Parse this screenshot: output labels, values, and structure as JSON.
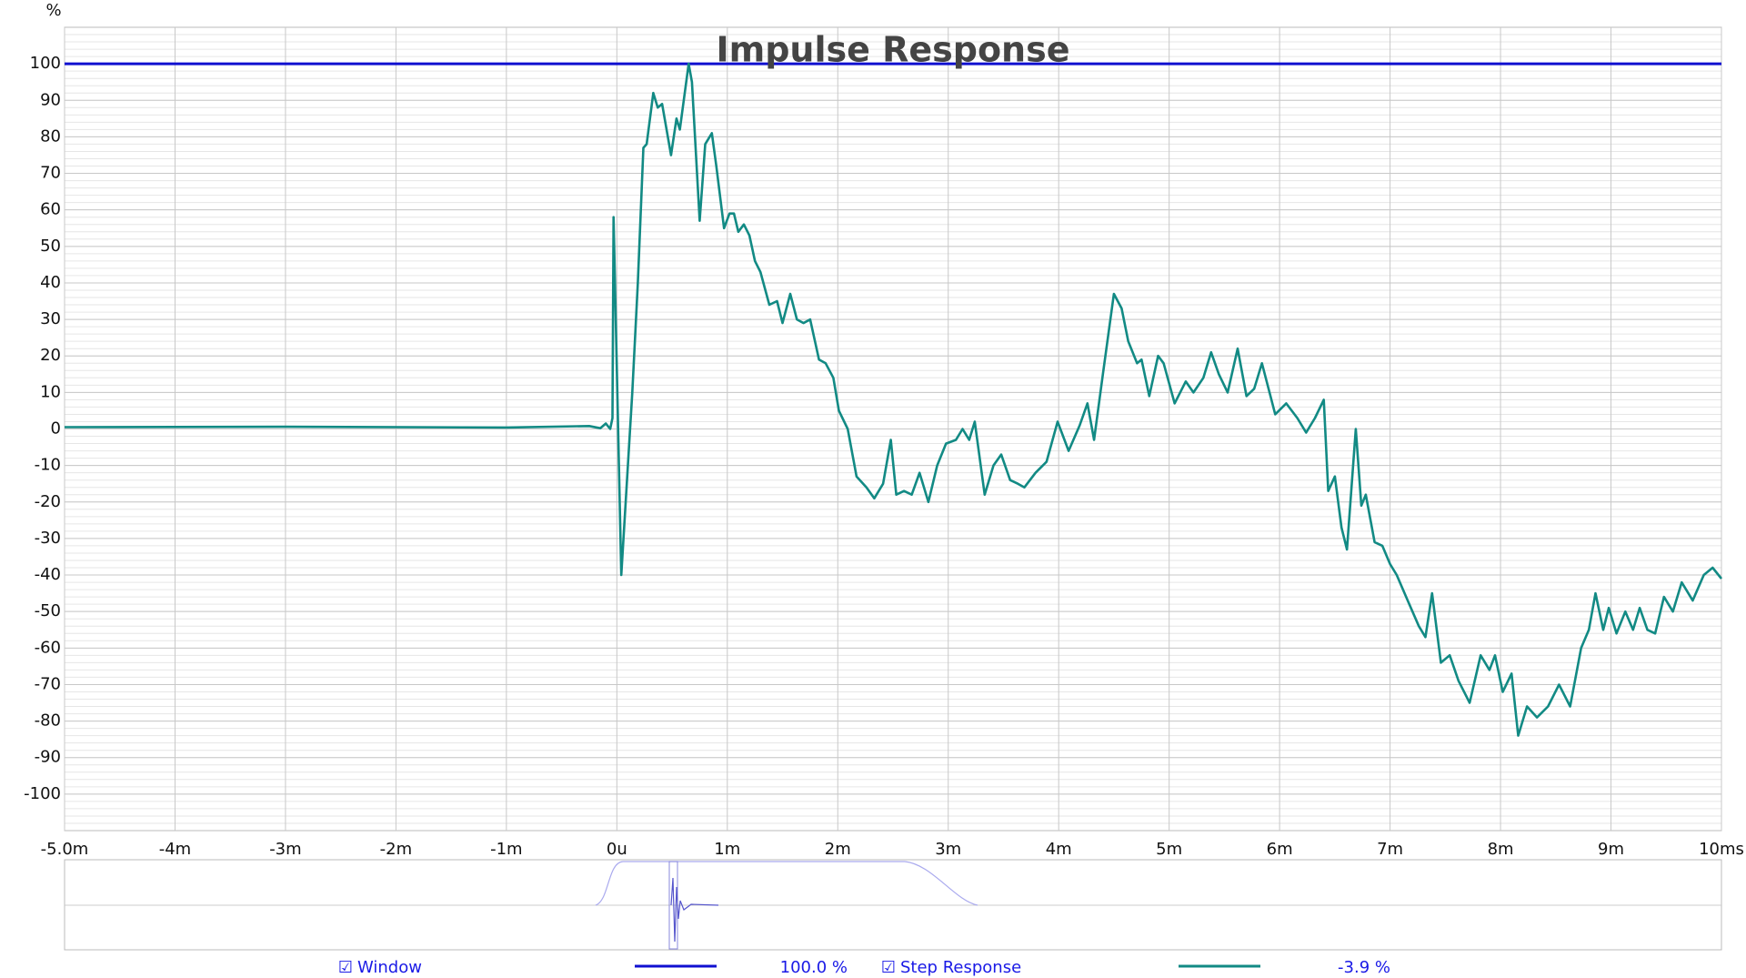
{
  "chart_data": {
    "type": "line",
    "title": "Impulse Response",
    "y_label": "%",
    "xlim": [
      -5,
      10
    ],
    "ylim": [
      -110,
      110
    ],
    "grid": true,
    "xticks": [
      {
        "value": -5,
        "label": "-5.0m"
      },
      {
        "value": -4,
        "label": "-4m"
      },
      {
        "value": -3,
        "label": "-3m"
      },
      {
        "value": -2,
        "label": "-2m"
      },
      {
        "value": -1,
        "label": "-1m"
      },
      {
        "value": 0,
        "label": "0u"
      },
      {
        "value": 1,
        "label": "1m"
      },
      {
        "value": 2,
        "label": "2m"
      },
      {
        "value": 3,
        "label": "3m"
      },
      {
        "value": 4,
        "label": "4m"
      },
      {
        "value": 5,
        "label": "5m"
      },
      {
        "value": 6,
        "label": "6m"
      },
      {
        "value": 7,
        "label": "7m"
      },
      {
        "value": 8,
        "label": "8m"
      },
      {
        "value": 9,
        "label": "9m"
      },
      {
        "value": 10,
        "label": "10ms"
      }
    ],
    "yticks": [
      100,
      90,
      80,
      70,
      60,
      50,
      40,
      30,
      20,
      10,
      0,
      -10,
      -20,
      -30,
      -40,
      -50,
      -60,
      -70,
      -80,
      -90,
      -100
    ],
    "series": [
      {
        "name": "Window",
        "color": "#1010d0",
        "legend_value": "100.0 %",
        "x": [
          -5,
          10
        ],
        "values": [
          100,
          100
        ]
      },
      {
        "name": "Step Response",
        "color": "#128a84",
        "legend_value": "-3.9 %",
        "x": [
          -5,
          -3,
          -1,
          -0.25,
          -0.15,
          -0.1,
          -0.06,
          -0.04,
          -0.03,
          0.04,
          0.14,
          0.19,
          0.24,
          0.27,
          0.33,
          0.37,
          0.41,
          0.49,
          0.54,
          0.57,
          0.65,
          0.68,
          0.75,
          0.8,
          0.86,
          0.9,
          0.97,
          1.02,
          1.06,
          1.1,
          1.15,
          1.2,
          1.25,
          1.3,
          1.38,
          1.45,
          1.5,
          1.57,
          1.63,
          1.69,
          1.75,
          1.83,
          1.89,
          1.96,
          2.01,
          2.09,
          2.17,
          2.26,
          2.33,
          2.41,
          2.48,
          2.53,
          2.6,
          2.67,
          2.74,
          2.82,
          2.9,
          2.98,
          3.07,
          3.13,
          3.19,
          3.24,
          3.33,
          3.41,
          3.48,
          3.56,
          3.63,
          3.69,
          3.79,
          3.89,
          3.99,
          4.09,
          4.19,
          4.26,
          4.32,
          4.4,
          4.5,
          4.57,
          4.63,
          4.71,
          4.75,
          4.82,
          4.9,
          4.95,
          5.05,
          5.15,
          5.22,
          5.31,
          5.38,
          5.45,
          5.53,
          5.62,
          5.7,
          5.77,
          5.84,
          5.96,
          6.06,
          6.16,
          6.24,
          6.32,
          6.4,
          6.44,
          6.5,
          6.56,
          6.61,
          6.69,
          6.74,
          6.78,
          6.86,
          6.93,
          7.0,
          7.06,
          7.16,
          7.26,
          7.32,
          7.38,
          7.46,
          7.54,
          7.62,
          7.72,
          7.82,
          7.9,
          7.95,
          8.02,
          8.1,
          8.16,
          8.24,
          8.33,
          8.43,
          8.53,
          8.63,
          8.73,
          8.8,
          8.86,
          8.93,
          8.98,
          9.05,
          9.13,
          9.2,
          9.26,
          9.33,
          9.4,
          9.48,
          9.56,
          9.64,
          9.74,
          9.84,
          9.92,
          10.0
        ],
        "values": [
          0.5,
          0.6,
          0.4,
          0.8,
          0.2,
          1.5,
          0,
          3,
          58,
          -40,
          10,
          40,
          77,
          78,
          92,
          88,
          89,
          75,
          85,
          82,
          100,
          95,
          57,
          78,
          81,
          72,
          55,
          59,
          59,
          54,
          56,
          53,
          46,
          43,
          34,
          35,
          29,
          37,
          30,
          29,
          30,
          19,
          18,
          14,
          5,
          0,
          -13,
          -16,
          -19,
          -15,
          -3,
          -18,
          -17,
          -18,
          -12,
          -20,
          -10,
          -4,
          -3,
          0,
          -3,
          2,
          -18,
          -10,
          -7,
          -14,
          -15,
          -16,
          -12,
          -9,
          2,
          -6,
          1,
          7,
          -3,
          15,
          37,
          33,
          24,
          18,
          19,
          9,
          20,
          18,
          7,
          13,
          10,
          14,
          21,
          15,
          10,
          22,
          9,
          11,
          18,
          4,
          7,
          3,
          -1,
          3,
          8,
          -17,
          -13,
          -27,
          -33,
          0,
          -21,
          -18,
          -31,
          -32,
          -37,
          -40,
          -47,
          -54,
          -57,
          -45,
          -64,
          -62,
          -69,
          -75,
          -62,
          -66,
          -62,
          -72,
          -67,
          -84,
          -76,
          -79,
          -76,
          -70,
          -76,
          -60,
          -55,
          -45,
          -55,
          -49,
          -56,
          -50,
          -55,
          -49,
          -55,
          -56,
          -46,
          -50,
          -42,
          -47,
          -40,
          -38,
          -41
        ]
      }
    ]
  }
}
